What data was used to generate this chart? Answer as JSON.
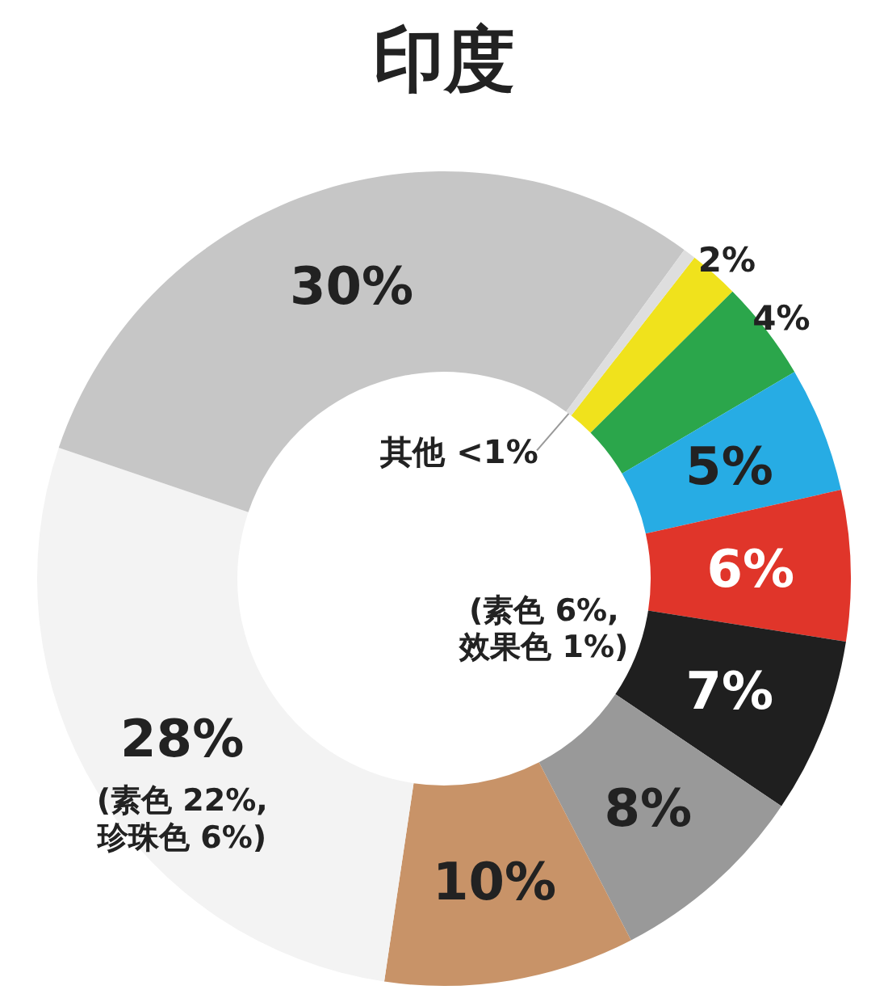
{
  "chart_data": {
    "type": "donut",
    "title": "印度",
    "categories": [
      null,
      null,
      null,
      null,
      null,
      null,
      null,
      null,
      null,
      "其他"
    ],
    "values": [
      2,
      4,
      5,
      6,
      7,
      8,
      10,
      28,
      30,
      0.5
    ],
    "value_labels": [
      "2%",
      "4%",
      "5%",
      "6%",
      "7%",
      "8%",
      "10%",
      "28%",
      "30%",
      "<1%"
    ],
    "colors": [
      "#f0e21c",
      "#2ba64b",
      "#27ace4",
      "#e0352a",
      "#1f1f1f",
      "#999999",
      "#c89368",
      "#f3f3f3",
      "#c6c6c6",
      "#dedede"
    ],
    "annotations": [
      "(素色 6%,\n效果色 1%)",
      "(素色 22%,\n珍珠色 6%)"
    ]
  }
}
